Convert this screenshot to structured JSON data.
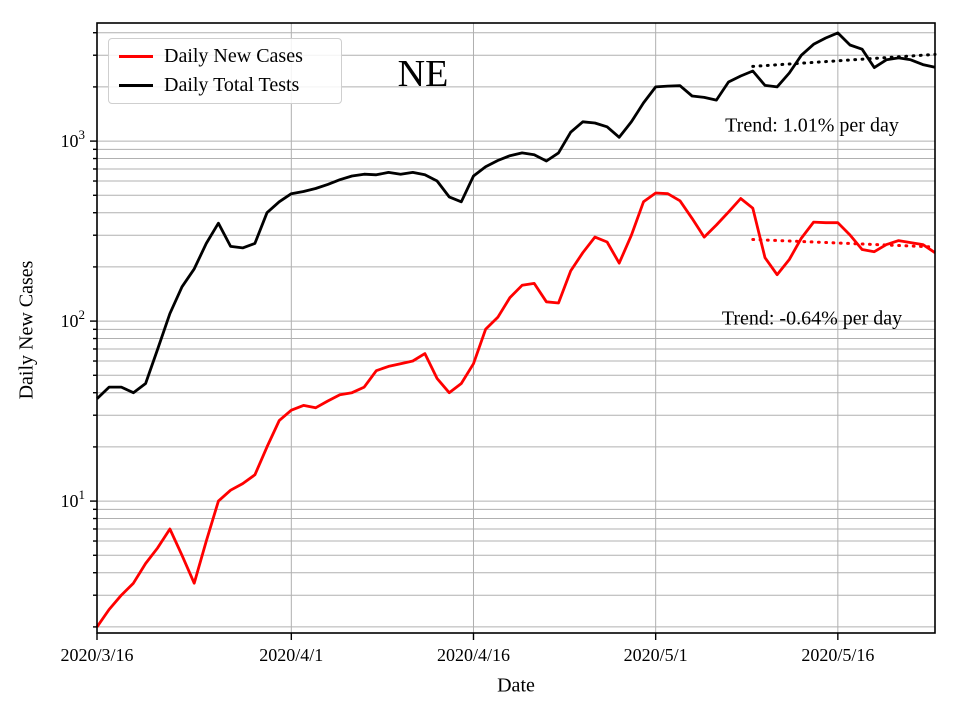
{
  "chart_title": "NE",
  "legend": {
    "items": [
      {
        "label": "Daily New Cases",
        "color": "#ff0000"
      },
      {
        "label": "Daily Total Tests",
        "color": "#000000"
      }
    ]
  },
  "annotations": {
    "trend_tests": {
      "text": "Trend: 1.01% per day"
    },
    "trend_cases": {
      "text": "Trend: -0.64% per day"
    }
  },
  "axes": {
    "xlabel": "Date",
    "ylabel": "Daily New Cases",
    "x_tick_labels": [
      "2020/3/16",
      "2020/4/1",
      "2020/4/16",
      "2020/5/1",
      "2020/5/16"
    ],
    "x_tick_days": [
      0,
      16,
      31,
      46,
      61
    ],
    "y_tick_exponents": [
      1,
      2,
      3
    ]
  },
  "chart_data": {
    "type": "line",
    "title": "NE",
    "xlabel": "Date",
    "ylabel": "Daily New Cases",
    "x_unit": "days since 2020/3/16",
    "x_range": [
      0,
      69
    ],
    "y_scale": "log",
    "y_range": [
      1.85,
      4530
    ],
    "grid": "both",
    "legend_position": "upper-left",
    "series": [
      {
        "name": "Daily New Cases",
        "color": "#ff0000",
        "style": "solid",
        "values": [
          2,
          2.5,
          3,
          3.5,
          4.5,
          5.5,
          7,
          5,
          3.5,
          6,
          10,
          11.5,
          12.5,
          14,
          20,
          28,
          32,
          34,
          33,
          36,
          39,
          40,
          43,
          53,
          56,
          58,
          60,
          66,
          48,
          40,
          45,
          58,
          90,
          105,
          135,
          158,
          162,
          128,
          126,
          190,
          240,
          293,
          275,
          210,
          300,
          460,
          515,
          510,
          466,
          372,
          293,
          342,
          403,
          480,
          424,
          225,
          181,
          220,
          289,
          355,
          352,
          352,
          301,
          250,
          243,
          266,
          280,
          273,
          266,
          240
        ]
      },
      {
        "name": "Daily Total Tests",
        "color": "#000000",
        "style": "solid",
        "values": [
          37,
          43,
          43,
          40,
          45,
          70,
          110,
          155,
          195,
          270,
          350,
          260,
          255,
          270,
          400,
          460,
          510,
          525,
          545,
          575,
          610,
          640,
          655,
          650,
          670,
          655,
          670,
          650,
          600,
          490,
          460,
          640,
          720,
          780,
          830,
          860,
          840,
          775,
          860,
          1120,
          1280,
          1260,
          1200,
          1050,
          1280,
          1630,
          2000,
          2020,
          2030,
          1780,
          1750,
          1690,
          2130,
          2300,
          2450,
          2040,
          2000,
          2390,
          3000,
          3450,
          3740,
          3990,
          3420,
          3240,
          2560,
          2830,
          2900,
          2830,
          2660,
          2570
        ]
      },
      {
        "name": "Tests trend +1.01% per day",
        "color": "#000000",
        "style": "dotted",
        "x": [
          54,
          69
        ],
        "values": [
          2600,
          3030
        ]
      },
      {
        "name": "Cases trend -0.64% per day",
        "color": "#ff0000",
        "style": "dotted",
        "x": [
          54,
          69
        ],
        "values": [
          284,
          258
        ]
      }
    ]
  }
}
